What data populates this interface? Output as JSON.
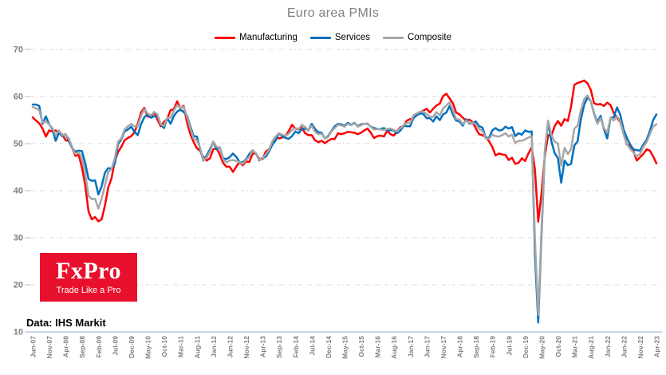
{
  "title": "Euro area PMIs",
  "logo": {
    "brand": "FxPro",
    "tagline": "Trade Like a Pro",
    "bg_color": "#e8112d"
  },
  "source_note": "Data: IHS Markit",
  "chart_data": {
    "type": "line",
    "title": "Euro area PMIs",
    "xlabel": "",
    "ylabel": "",
    "ylim": [
      10,
      70
    ],
    "yticks": [
      70,
      60,
      50,
      40,
      30,
      20,
      10
    ],
    "grid": "horizontal-dashed",
    "grid_color": "#d9d9d9",
    "axis_color": "#b8cce4",
    "tick_text_color": "#7f7f7f",
    "legend_position": "top",
    "x_start": "Jun-07",
    "x_end": "Apr-23",
    "x_interval": "monthly",
    "x_points": 191,
    "x_tick_every_months": 5,
    "x_tick_labels": [
      "Jun-07",
      "Nov-07",
      "Apr-08",
      "Sep-08",
      "Feb-09",
      "Jul-09",
      "Dec-09",
      "May-10",
      "Oct-10",
      "Mar-11",
      "Aug-11",
      "Jan-12",
      "Jun-12",
      "Nov-12",
      "Apr-13",
      "Sep-13",
      "Feb-14",
      "Jul-14",
      "Dec-14",
      "May-15",
      "Oct-15",
      "Mar-16",
      "Aug-16",
      "Jan-17",
      "Jun-17",
      "Nov-17",
      "Apr-18",
      "Sep-18",
      "Feb-19",
      "Jul-19",
      "Dec-19",
      "May-20",
      "Oct-20",
      "Mar-21",
      "Aug-21",
      "Jan-22",
      "Jun-22",
      "Nov-22",
      "Apr-23"
    ],
    "series": [
      {
        "name": "Manufacturing",
        "color": "#fe0000",
        "values": [
          55.6,
          54.9,
          54.3,
          53.2,
          51.5,
          52.8,
          52.6,
          52.8,
          52.3,
          52.0,
          50.7,
          50.6,
          49.2,
          47.4,
          47.6,
          45.0,
          41.1,
          35.6,
          33.9,
          34.4,
          33.5,
          33.9,
          36.8,
          40.7,
          42.6,
          46.3,
          48.2,
          49.3,
          50.7,
          51.2,
          51.6,
          52.4,
          54.2,
          56.6,
          57.6,
          55.8,
          55.6,
          56.7,
          55.1,
          53.7,
          54.6,
          55.3,
          57.1,
          57.3,
          59.0,
          57.5,
          58.0,
          54.6,
          52.0,
          50.4,
          49.0,
          48.5,
          47.1,
          46.4,
          46.9,
          48.8,
          49.0,
          47.7,
          45.9,
          45.1,
          45.1,
          44.0,
          45.1,
          46.1,
          45.4,
          46.2,
          46.1,
          47.9,
          47.9,
          46.8,
          46.7,
          48.3,
          48.8,
          50.3,
          51.4,
          51.1,
          51.3,
          51.6,
          52.7,
          54.0,
          53.2,
          53.0,
          53.4,
          52.2,
          51.8,
          51.8,
          50.7,
          50.3,
          50.6,
          50.1,
          50.6,
          51.0,
          51.0,
          52.2,
          52.0,
          52.2,
          52.5,
          52.4,
          52.3,
          52.0,
          52.3,
          52.8,
          53.2,
          52.3,
          51.2,
          51.6,
          51.7,
          51.5,
          52.8,
          52.0,
          51.7,
          52.6,
          53.5,
          53.7,
          54.9,
          55.2,
          55.4,
          56.2,
          56.7,
          57.0,
          57.4,
          56.6,
          57.4,
          58.1,
          58.5,
          60.1,
          60.6,
          59.6,
          58.6,
          56.6,
          56.2,
          55.5,
          54.9,
          55.1,
          54.6,
          53.2,
          52.0,
          51.8,
          51.4,
          50.5,
          49.3,
          47.5,
          47.9,
          47.7,
          47.6,
          46.5,
          47.0,
          45.7,
          45.9,
          46.9,
          46.3,
          47.9,
          49.2,
          44.5,
          33.4,
          39.4,
          47.4,
          51.8,
          51.7,
          53.7,
          54.8,
          53.8,
          55.2,
          54.8,
          57.9,
          62.5,
          62.9,
          63.1,
          63.4,
          62.8,
          61.4,
          58.6,
          58.3,
          58.4,
          58.0,
          58.7,
          58.2,
          56.5,
          55.5,
          54.6,
          52.1,
          49.8,
          49.6,
          48.4,
          46.4,
          47.1,
          47.8,
          48.8,
          48.5,
          47.3,
          45.8
        ]
      },
      {
        "name": "Services",
        "color": "#0070c0",
        "values": [
          58.3,
          58.3,
          58.0,
          54.2,
          55.8,
          54.1,
          53.1,
          50.6,
          52.3,
          51.6,
          52.0,
          50.6,
          49.1,
          48.3,
          48.5,
          48.4,
          45.8,
          42.5,
          42.1,
          42.2,
          39.2,
          40.9,
          43.8,
          44.8,
          44.7,
          45.7,
          49.9,
          50.9,
          52.6,
          53.0,
          53.6,
          52.5,
          51.8,
          54.1,
          55.6,
          56.2,
          55.5,
          55.8,
          55.9,
          54.1,
          53.3,
          55.4,
          54.2,
          55.9,
          56.8,
          57.2,
          56.7,
          56.0,
          53.7,
          51.6,
          51.5,
          48.8,
          46.4,
          47.5,
          48.8,
          50.4,
          48.8,
          49.2,
          46.9,
          46.7,
          47.1,
          47.9,
          47.2,
          46.1,
          46.0,
          46.7,
          47.8,
          48.6,
          47.9,
          46.4,
          47.0,
          47.2,
          48.3,
          49.8,
          50.7,
          52.2,
          51.6,
          51.2,
          51.0,
          51.6,
          52.6,
          52.2,
          53.1,
          53.2,
          52.8,
          54.2,
          53.1,
          52.4,
          52.3,
          51.1,
          51.6,
          52.7,
          53.7,
          54.2,
          54.1,
          53.8,
          54.4,
          54.0,
          54.4,
          53.7,
          54.1,
          54.2,
          54.2,
          53.6,
          53.3,
          53.1,
          53.1,
          53.3,
          52.8,
          52.9,
          52.8,
          52.2,
          52.8,
          53.8,
          53.7,
          53.7,
          55.5,
          56.0,
          56.4,
          56.3,
          55.4,
          55.4,
          54.7,
          55.8,
          55.0,
          56.2,
          56.6,
          58.0,
          56.2,
          54.9,
          54.7,
          53.8,
          55.2,
          54.2,
          54.4,
          54.7,
          53.7,
          53.4,
          51.2,
          51.2,
          52.8,
          53.3,
          52.8,
          52.9,
          53.6,
          53.2,
          53.5,
          51.6,
          52.2,
          51.9,
          52.8,
          52.5,
          52.6,
          26.4,
          12.0,
          30.5,
          48.3,
          54.7,
          50.5,
          48.0,
          46.9,
          41.7,
          46.4,
          45.4,
          45.7,
          49.6,
          50.5,
          55.2,
          58.3,
          59.8,
          59.0,
          56.4,
          54.6,
          55.9,
          53.1,
          51.1,
          55.5,
          55.6,
          57.7,
          56.1,
          53.0,
          51.2,
          49.8,
          48.8,
          48.6,
          48.5,
          49.8,
          50.8,
          52.7,
          55.0,
          56.2
        ]
      },
      {
        "name": "Composite",
        "color": "#a6a6a6",
        "values": [
          57.8,
          57.5,
          57.1,
          54.5,
          54.7,
          54.1,
          53.3,
          51.8,
          52.8,
          51.8,
          51.9,
          51.1,
          49.3,
          47.8,
          48.2,
          47.0,
          43.6,
          38.9,
          38.2,
          38.3,
          36.2,
          38.3,
          41.1,
          44.0,
          44.6,
          46.9,
          50.4,
          51.1,
          53.0,
          53.7,
          54.2,
          53.7,
          53.7,
          55.9,
          57.3,
          56.4,
          56.0,
          56.7,
          56.2,
          54.1,
          53.8,
          55.5,
          55.5,
          57.0,
          58.2,
          57.6,
          57.8,
          55.8,
          53.3,
          51.1,
          50.7,
          49.1,
          46.5,
          47.0,
          48.3,
          50.4,
          49.3,
          49.1,
          46.7,
          46.0,
          46.4,
          46.5,
          46.3,
          46.1,
          45.7,
          46.5,
          47.2,
          48.6,
          47.9,
          46.5,
          46.9,
          47.7,
          48.7,
          50.5,
          51.5,
          52.2,
          51.9,
          51.7,
          52.1,
          52.9,
          53.3,
          53.1,
          54.0,
          53.5,
          52.8,
          53.8,
          52.5,
          52.0,
          52.1,
          51.1,
          51.4,
          52.6,
          53.3,
          54.0,
          53.9,
          53.6,
          54.2,
          53.9,
          54.3,
          53.6,
          53.9,
          54.2,
          54.3,
          53.6,
          53.0,
          53.1,
          53.0,
          52.9,
          53.1,
          53.2,
          52.9,
          52.6,
          53.3,
          53.9,
          54.4,
          54.4,
          56.0,
          56.4,
          56.8,
          56.8,
          56.3,
          55.7,
          55.7,
          56.7,
          56.0,
          57.5,
          58.1,
          58.8,
          57.1,
          55.2,
          55.1,
          54.1,
          54.9,
          54.3,
          54.5,
          54.1,
          53.1,
          52.7,
          51.1,
          51.0,
          51.9,
          51.6,
          51.5,
          51.8,
          52.2,
          51.5,
          51.9,
          50.1,
          50.6,
          50.6,
          50.9,
          51.3,
          51.6,
          29.7,
          13.6,
          31.9,
          48.5,
          54.9,
          51.9,
          50.4,
          50.0,
          45.3,
          49.1,
          47.8,
          48.8,
          53.2,
          53.8,
          57.1,
          59.5,
          60.2,
          59.0,
          56.2,
          54.2,
          55.4,
          53.3,
          52.3,
          55.5,
          54.9,
          55.8,
          54.8,
          52.0,
          49.9,
          48.9,
          48.1,
          47.3,
          47.8,
          49.3,
          50.3,
          52.0,
          53.7,
          54.1
        ]
      }
    ]
  }
}
